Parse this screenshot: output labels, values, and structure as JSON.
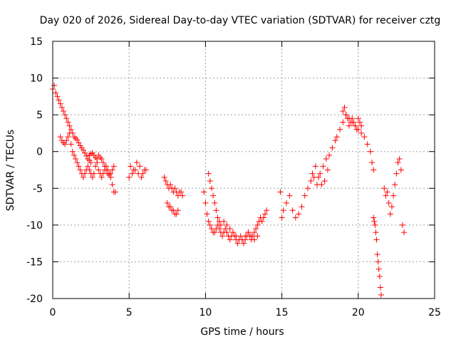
{
  "chart_data": {
    "type": "scatter",
    "title": "Day 020 of 2026, Sidereal Day-to-day VTEC variation (SDTVAR) for receiver cztg",
    "xlabel": "GPS time / hours",
    "ylabel": "SDTVAR / TECUs",
    "xlim": [
      0,
      25
    ],
    "ylim": [
      -20,
      15
    ],
    "xticks": [
      0,
      5,
      10,
      15,
      20,
      25
    ],
    "yticks": [
      -20,
      -15,
      -10,
      -5,
      0,
      5,
      10,
      15
    ],
    "xtick_labels": [
      "0",
      "5",
      "10",
      "15",
      "20",
      "25"
    ],
    "ytick_labels": [
      "-20",
      "-15",
      "-10",
      "-5",
      "0",
      "5",
      "10",
      "15"
    ],
    "grid": true,
    "marker": "plus",
    "series_color": "#ff0000",
    "series": [
      {
        "name": "SDTVAR",
        "x": [
          0.0,
          0.1,
          0.2,
          0.3,
          0.4,
          0.5,
          0.6,
          0.7,
          0.8,
          0.9,
          1.0,
          1.1,
          1.2,
          1.3,
          1.4,
          1.5,
          1.6,
          1.7,
          1.8,
          1.9,
          2.0,
          2.1,
          2.2,
          2.3,
          2.4,
          2.5,
          0.5,
          0.6,
          0.7,
          0.8,
          0.9,
          1.0,
          1.1,
          1.2,
          1.3,
          1.4,
          1.5,
          1.6,
          1.7,
          1.8,
          1.9,
          2.0,
          2.1,
          2.2,
          2.3,
          2.4,
          2.5,
          2.6,
          2.7,
          2.8,
          2.9,
          3.0,
          3.1,
          3.2,
          3.3,
          3.4,
          3.5,
          3.6,
          3.7,
          3.8,
          3.9,
          4.0,
          4.1,
          2.4,
          2.5,
          2.6,
          2.7,
          2.8,
          2.9,
          3.0,
          3.1,
          3.2,
          3.3,
          3.4,
          3.5,
          3.6,
          3.7,
          3.8,
          3.9,
          4.0,
          5.0,
          5.2,
          5.4,
          5.6,
          5.8,
          6.0,
          5.1,
          5.3,
          5.5,
          5.7,
          5.9,
          6.1,
          7.3,
          7.4,
          7.5,
          7.6,
          7.7,
          7.8,
          7.9,
          8.0,
          8.1,
          8.2,
          8.3,
          8.4,
          8.5,
          7.5,
          7.6,
          7.7,
          7.8,
          7.9,
          8.0,
          8.1,
          8.2,
          9.9,
          10.0,
          10.1,
          10.2,
          10.3,
          10.4,
          10.5,
          10.6,
          10.7,
          10.8,
          10.9,
          11.0,
          11.1,
          11.2,
          11.3,
          11.4,
          11.5,
          11.6,
          11.7,
          11.8,
          11.9,
          12.0,
          12.1,
          12.2,
          12.3,
          12.4,
          12.5,
          12.6,
          12.7,
          12.8,
          12.9,
          13.0,
          13.1,
          13.2,
          13.3,
          13.4,
          13.5,
          13.6,
          13.7,
          13.8,
          13.9,
          14.0,
          10.2,
          10.3,
          10.4,
          10.5,
          10.6,
          10.7,
          10.8,
          10.9,
          11.0,
          11.2,
          11.4,
          11.6,
          11.8,
          12.0,
          12.2,
          12.4,
          12.6,
          12.8,
          13.0,
          13.2,
          13.4,
          14.9,
          15.0,
          15.1,
          15.3,
          15.5,
          15.7,
          15.9,
          16.1,
          16.3,
          16.5,
          16.7,
          16.9,
          17.1,
          17.3,
          17.5,
          17.7,
          17.9,
          18.1,
          18.3,
          18.5,
          17.0,
          17.2,
          17.4,
          17.6,
          17.8,
          18.0,
          18.6,
          18.8,
          19.0,
          19.2,
          19.4,
          19.6,
          19.8,
          20.0,
          20.2,
          20.4,
          20.6,
          20.8,
          20.9,
          21.0,
          19.0,
          19.1,
          19.2,
          19.3,
          19.4,
          19.5,
          19.6,
          19.7,
          19.8,
          19.9,
          20.0,
          20.1,
          20.2,
          21.0,
          21.05,
          21.1,
          21.15,
          21.2,
          21.25,
          21.3,
          21.35,
          21.4,
          21.45,
          21.5,
          21.7,
          21.8,
          21.9,
          22.0,
          22.1,
          22.2,
          22.3,
          22.4,
          22.5,
          22.6,
          22.7,
          22.8,
          22.9,
          23.0
        ],
        "y": [
          8.5,
          9.0,
          8.0,
          7.5,
          7.0,
          6.5,
          6.0,
          5.5,
          5.0,
          4.5,
          4.0,
          3.5,
          3.0,
          2.5,
          2.0,
          1.8,
          1.6,
          1.2,
          0.8,
          0.5,
          0.2,
          -0.2,
          -0.6,
          -1.0,
          -1.2,
          -1.5,
          2.0,
          1.5,
          1.2,
          1.0,
          1.5,
          2.0,
          2.5,
          1.0,
          0.0,
          -0.5,
          -1.0,
          -1.5,
          -2.0,
          -2.5,
          -3.0,
          -3.5,
          -3.0,
          -2.5,
          -2.0,
          -2.5,
          -3.0,
          -3.5,
          -3.0,
          -2.0,
          -1.5,
          -2.5,
          -3.0,
          -3.5,
          -3.0,
          -2.5,
          -2.0,
          -2.5,
          -3.0,
          -3.5,
          -4.5,
          -5.5,
          -5.5,
          -0.5,
          -0.3,
          -0.2,
          -0.5,
          -0.8,
          -1.0,
          -0.5,
          -0.8,
          -1.0,
          -1.5,
          -2.0,
          -2.5,
          -3.0,
          -3.2,
          -3.0,
          -2.5,
          -2.0,
          -3.5,
          -3.0,
          -2.5,
          -3.0,
          -3.5,
          -2.5,
          -2.0,
          -2.5,
          -1.5,
          -2.0,
          -3.0,
          -2.5,
          -3.5,
          -4.0,
          -4.5,
          -5.0,
          -4.5,
          -5.0,
          -5.5,
          -5.0,
          -5.5,
          -6.0,
          -5.5,
          -5.5,
          -6.0,
          -7.0,
          -7.5,
          -7.5,
          -8.0,
          -8.0,
          -8.5,
          -8.5,
          -8.0,
          -5.5,
          -7.0,
          -8.5,
          -9.5,
          -10.0,
          -10.5,
          -11.0,
          -11.0,
          -10.5,
          -10.0,
          -10.5,
          -11.0,
          -11.5,
          -11.0,
          -10.5,
          -11.0,
          -11.5,
          -12.0,
          -11.5,
          -11.0,
          -11.5,
          -12.0,
          -12.5,
          -12.0,
          -11.5,
          -12.0,
          -12.5,
          -12.0,
          -11.5,
          -11.0,
          -11.5,
          -12.0,
          -11.5,
          -11.0,
          -10.5,
          -10.0,
          -9.5,
          -9.0,
          -9.5,
          -9.0,
          -8.5,
          -8.0,
          -3.0,
          -4.0,
          -5.0,
          -6.0,
          -7.0,
          -8.0,
          -9.0,
          -9.5,
          -10.0,
          -9.5,
          -10.0,
          -10.5,
          -11.0,
          -11.5,
          -12.0,
          -12.0,
          -11.5,
          -11.0,
          -11.5,
          -12.0,
          -11.5,
          -5.5,
          -9.0,
          -8.0,
          -7.0,
          -6.0,
          -8.0,
          -9.0,
          -8.5,
          -7.5,
          -6.0,
          -5.0,
          -4.0,
          -3.5,
          -4.5,
          -3.0,
          -2.0,
          -1.0,
          -0.5,
          0.5,
          1.5,
          -3.0,
          -2.0,
          -3.5,
          -4.5,
          -4.0,
          -2.5,
          2.0,
          3.0,
          4.0,
          5.0,
          4.5,
          4.0,
          3.5,
          3.0,
          2.5,
          2.0,
          1.0,
          0.0,
          -1.5,
          -2.5,
          5.5,
          6.0,
          5.0,
          4.5,
          3.5,
          4.0,
          4.5,
          4.0,
          3.5,
          3.0,
          4.5,
          4.0,
          3.5,
          -9.0,
          -9.5,
          -10.0,
          -11.0,
          -12.0,
          -14.0,
          -15.0,
          -16.0,
          -17.0,
          -18.5,
          -19.5,
          -5.0,
          -6.0,
          -5.5,
          -7.0,
          -8.5,
          -7.5,
          -6.0,
          -4.5,
          -3.0,
          -1.5,
          -1.0,
          -2.5,
          -10.0,
          -11.0
        ]
      }
    ]
  }
}
